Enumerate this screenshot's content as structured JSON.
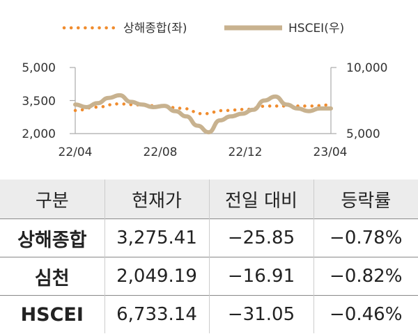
{
  "chart_data": {
    "type": "line",
    "legend": {
      "placement": "top-center"
    },
    "x_ticks": [
      "22/04",
      "22/08",
      "22/12",
      "23/04"
    ],
    "y_left": {
      "ticks": [
        "5,000",
        "3,500",
        "2,000"
      ],
      "range": [
        2000,
        5000
      ]
    },
    "y_right": {
      "ticks": [
        "10,000",
        "5,000"
      ],
      "range": [
        5000,
        10000
      ]
    },
    "series": [
      {
        "name": "상해종합(좌)",
        "axis": "left",
        "color": "#f08c2e",
        "style": "dotted",
        "x": [
          "22/04",
          "22/05",
          "22/06",
          "22/07",
          "22/08",
          "22/09",
          "22/10",
          "22/11",
          "22/12",
          "23/01",
          "23/02",
          "23/03",
          "23/04"
        ],
        "values": [
          3050,
          3200,
          3350,
          3300,
          3250,
          3150,
          2900,
          3050,
          3100,
          3250,
          3250,
          3250,
          3300
        ]
      },
      {
        "name": "HSCEI(우)",
        "axis": "right",
        "color": "#c8b28f",
        "style": "solid",
        "x": [
          "22/04",
          "22/05",
          "22/05",
          "22/06",
          "22/06",
          "22/07",
          "22/07",
          "22/08",
          "22/08",
          "22/09",
          "22/09",
          "22/10",
          "22/10",
          "22/11",
          "22/11",
          "22/12",
          "22/12",
          "23/01",
          "23/01",
          "23/02",
          "23/02",
          "23/03",
          "23/03",
          "23/04"
        ],
        "values": [
          7200,
          7000,
          7300,
          7700,
          7900,
          7400,
          7200,
          7000,
          7100,
          6700,
          6300,
          5600,
          5100,
          6000,
          6300,
          6500,
          6800,
          7500,
          7800,
          7200,
          6900,
          6700,
          6900,
          6900
        ]
      }
    ]
  },
  "table": {
    "headers": [
      "구분",
      "현재가",
      "전일 대비",
      "등락률"
    ],
    "rows": [
      [
        "상해종합",
        "3,275.41",
        "−25.85",
        "−0.78%"
      ],
      [
        "심천",
        "2,049.19",
        "−16.91",
        "−0.82%"
      ],
      [
        "HSCEI",
        "6,733.14",
        "−31.05",
        "−0.46%"
      ]
    ]
  }
}
